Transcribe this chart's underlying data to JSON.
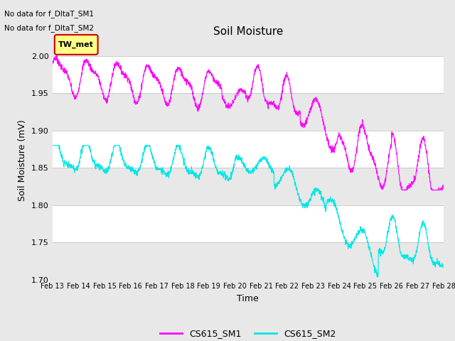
{
  "title": "Soil Moisture",
  "xlabel": "Time",
  "ylabel": "Soil Moisture (mV)",
  "annotations": [
    "No data for f_DltaT_SM1",
    "No data for f_DltaT_SM2"
  ],
  "legend_box_label": "TW_met",
  "legend_box_color": "#ffff00",
  "legend_box_edge": "#cc0000",
  "ylim": [
    1.7,
    2.02
  ],
  "yticks": [
    1.7,
    1.75,
    1.8,
    1.85,
    1.9,
    1.95,
    2.0
  ],
  "xtick_labels": [
    "Feb 13",
    "Feb 14",
    "Feb 15",
    "Feb 16",
    "Feb 17",
    "Feb 18",
    "Feb 19",
    "Feb 20",
    "Feb 21",
    "Feb 22",
    "Feb 23",
    "Feb 24",
    "Feb 25",
    "Feb 26",
    "Feb 27",
    "Feb 28"
  ],
  "sm1_color": "#ff00ff",
  "sm2_color": "#00e5e5",
  "sm1_label": "CS615_SM1",
  "sm2_label": "CS615_SM2",
  "bg_color": "#e8e8e8",
  "band_colors": [
    "#e8e8e8",
    "#ffffff",
    "#e8e8e8",
    "#ffffff",
    "#e8e8e8",
    "#ffffff"
  ]
}
